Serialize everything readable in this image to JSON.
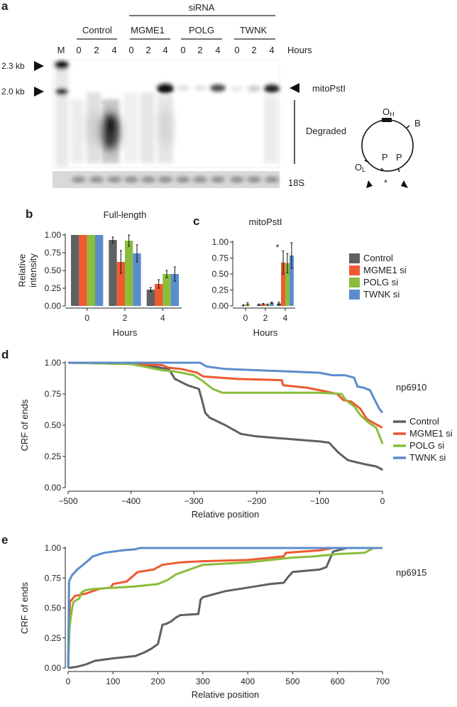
{
  "panel_a": {
    "panel_label": "a",
    "sirna_label": "siRNA",
    "groups": [
      "Control",
      "MGME1",
      "POLG",
      "TWNK"
    ],
    "marker_lane": "M",
    "lane_hours": [
      "0",
      "2",
      "4",
      "0",
      "2",
      "4",
      "0",
      "2",
      "4",
      "0",
      "2",
      "4"
    ],
    "hours_label": "Hours",
    "size_markers": [
      "2.3 kb",
      "2.0 kb"
    ],
    "band_label": "mitoPstI",
    "degraded_label": "Degraded",
    "loading_label": "18S",
    "plasmid": {
      "oh": "O",
      "oh_sub": "H",
      "ol": "O",
      "ol_sub": "L",
      "b": "B",
      "p1": "P",
      "p2": "P",
      "asterisk": "*"
    }
  },
  "chart_data": [
    {
      "id": "b",
      "panel_label": "b",
      "type": "bar",
      "title": "Full-length",
      "xlabel": "Hours",
      "ylabel": "Relative intensity",
      "ylabel_lines": [
        "Relative",
        "intensity"
      ],
      "categories": [
        "0",
        "2",
        "4"
      ],
      "ylim": [
        0,
        1
      ],
      "yticks": [
        "0.00",
        "0.25",
        "0.50",
        "0.75",
        "1.00"
      ],
      "series": [
        {
          "name": "Control",
          "values": [
            1.0,
            0.93,
            0.23
          ],
          "errors": [
            0.0,
            0.04,
            0.03
          ]
        },
        {
          "name": "MGME1 si",
          "values": [
            1.0,
            0.62,
            0.31
          ],
          "errors": [
            0.0,
            0.16,
            0.06
          ]
        },
        {
          "name": "POLG si",
          "values": [
            1.0,
            0.92,
            0.45
          ],
          "errors": [
            0.0,
            0.08,
            0.05
          ]
        },
        {
          "name": "TWNK si",
          "values": [
            1.0,
            0.74,
            0.45
          ],
          "errors": [
            0.0,
            0.12,
            0.1
          ]
        }
      ]
    },
    {
      "id": "c",
      "panel_label": "c",
      "type": "bar",
      "title": "mitoPstI",
      "xlabel": "Hours",
      "ylabel": "",
      "categories": [
        "0",
        "2",
        "4"
      ],
      "ylim": [
        0,
        1
      ],
      "yticks": [
        "0.00",
        "0.25",
        "0.50",
        "0.75",
        "1.00"
      ],
      "annotation": "*",
      "series": [
        {
          "name": "Control",
          "values": [
            0.0,
            0.02,
            0.04
          ],
          "errors": [
            0.0,
            0.01,
            0.02
          ]
        },
        {
          "name": "MGME1 si",
          "values": [
            0.01,
            0.03,
            0.68
          ],
          "errors": [
            0.01,
            0.01,
            0.18
          ]
        },
        {
          "name": "POLG si",
          "values": [
            0.03,
            0.02,
            0.67
          ],
          "errors": [
            0.02,
            0.01,
            0.15
          ]
        },
        {
          "name": "TWNK si",
          "values": [
            0.0,
            0.05,
            0.79
          ],
          "errors": [
            0.0,
            0.01,
            0.2
          ]
        }
      ]
    },
    {
      "id": "d",
      "panel_label": "d",
      "type": "line",
      "title": "",
      "sample": "np6910",
      "xlabel": "Relative position",
      "ylabel": "CRF of ends",
      "xlim": [
        -500,
        0
      ],
      "ylim": [
        0,
        1
      ],
      "xticks": [
        "-500",
        "-400",
        "-300",
        "-200",
        "-100",
        "0"
      ],
      "yticks": [
        "0.00",
        "0.25",
        "0.50",
        "0.75",
        "1.00"
      ],
      "series": [
        {
          "name": "Control",
          "points": [
            [
              -500,
              1.0
            ],
            [
              -420,
              1.0
            ],
            [
              -380,
              0.98
            ],
            [
              -340,
              0.95
            ],
            [
              -330,
              0.87
            ],
            [
              -310,
              0.82
            ],
            [
              -292,
              0.79
            ],
            [
              -287,
              0.7
            ],
            [
              -282,
              0.6
            ],
            [
              -275,
              0.56
            ],
            [
              -250,
              0.5
            ],
            [
              -225,
              0.43
            ],
            [
              -200,
              0.41
            ],
            [
              -150,
              0.39
            ],
            [
              -100,
              0.37
            ],
            [
              -85,
              0.36
            ],
            [
              -70,
              0.28
            ],
            [
              -55,
              0.22
            ],
            [
              -30,
              0.19
            ],
            [
              -10,
              0.17
            ],
            [
              -2,
              0.15
            ],
            [
              0,
              0.14
            ]
          ]
        },
        {
          "name": "MGME1 si",
          "points": [
            [
              -500,
              1.0
            ],
            [
              -400,
              0.99
            ],
            [
              -350,
              0.98
            ],
            [
              -340,
              0.96
            ],
            [
              -320,
              0.95
            ],
            [
              -295,
              0.92
            ],
            [
              -285,
              0.89
            ],
            [
              -230,
              0.87
            ],
            [
              -160,
              0.86
            ],
            [
              -158,
              0.82
            ],
            [
              -120,
              0.8
            ],
            [
              -90,
              0.77
            ],
            [
              -72,
              0.75
            ],
            [
              -62,
              0.7
            ],
            [
              -50,
              0.69
            ],
            [
              -35,
              0.63
            ],
            [
              -25,
              0.55
            ],
            [
              -15,
              0.52
            ],
            [
              0,
              0.48
            ]
          ]
        },
        {
          "name": "POLG si",
          "points": [
            [
              -500,
              1.0
            ],
            [
              -400,
              0.99
            ],
            [
              -350,
              0.94
            ],
            [
              -330,
              0.93
            ],
            [
              -300,
              0.9
            ],
            [
              -285,
              0.85
            ],
            [
              -270,
              0.79
            ],
            [
              -255,
              0.76
            ],
            [
              -200,
              0.76
            ],
            [
              -100,
              0.76
            ],
            [
              -65,
              0.75
            ],
            [
              -58,
              0.7
            ],
            [
              -45,
              0.65
            ],
            [
              -35,
              0.58
            ],
            [
              -22,
              0.52
            ],
            [
              -10,
              0.48
            ],
            [
              -2,
              0.38
            ],
            [
              0,
              0.35
            ]
          ]
        },
        {
          "name": "TWNK si",
          "points": [
            [
              -500,
              1.0
            ],
            [
              -400,
              1.0
            ],
            [
              -290,
              1.0
            ],
            [
              -280,
              0.97
            ],
            [
              -250,
              0.95
            ],
            [
              -150,
              0.93
            ],
            [
              -100,
              0.92
            ],
            [
              -80,
              0.9
            ],
            [
              -60,
              0.9
            ],
            [
              -45,
              0.88
            ],
            [
              -40,
              0.81
            ],
            [
              -30,
              0.8
            ],
            [
              -20,
              0.78
            ],
            [
              -10,
              0.68
            ],
            [
              -5,
              0.63
            ],
            [
              0,
              0.6
            ]
          ]
        }
      ]
    },
    {
      "id": "e",
      "panel_label": "e",
      "type": "line",
      "title": "",
      "sample": "np6915",
      "xlabel": "Relative position",
      "ylabel": "CRF of ends",
      "xlim": [
        0,
        700
      ],
      "ylim": [
        0,
        1
      ],
      "xticks": [
        "0",
        "100",
        "200",
        "300",
        "400",
        "500",
        "600",
        "700"
      ],
      "yticks": [
        "0.00",
        "0.25",
        "0.50",
        "0.75",
        "1.00"
      ],
      "series": [
        {
          "name": "Control",
          "points": [
            [
              0,
              0.0
            ],
            [
              20,
              0.01
            ],
            [
              40,
              0.03
            ],
            [
              60,
              0.06
            ],
            [
              100,
              0.08
            ],
            [
              150,
              0.1
            ],
            [
              170,
              0.13
            ],
            [
              185,
              0.16
            ],
            [
              200,
              0.2
            ],
            [
              210,
              0.36
            ],
            [
              220,
              0.37
            ],
            [
              230,
              0.39
            ],
            [
              240,
              0.42
            ],
            [
              250,
              0.44
            ],
            [
              290,
              0.45
            ],
            [
              295,
              0.57
            ],
            [
              300,
              0.59
            ],
            [
              350,
              0.64
            ],
            [
              400,
              0.67
            ],
            [
              450,
              0.7
            ],
            [
              480,
              0.71
            ],
            [
              490,
              0.76
            ],
            [
              500,
              0.8
            ],
            [
              560,
              0.82
            ],
            [
              575,
              0.84
            ],
            [
              590,
              0.97
            ],
            [
              620,
              1.0
            ],
            [
              700,
              1.0
            ]
          ]
        },
        {
          "name": "MGME1 si",
          "points": [
            [
              0,
              0.0
            ],
            [
              4,
              0.55
            ],
            [
              15,
              0.6
            ],
            [
              40,
              0.62
            ],
            [
              70,
              0.66
            ],
            [
              95,
              0.67
            ],
            [
              100,
              0.7
            ],
            [
              130,
              0.72
            ],
            [
              155,
              0.8
            ],
            [
              190,
              0.82
            ],
            [
              210,
              0.86
            ],
            [
              250,
              0.88
            ],
            [
              300,
              0.89
            ],
            [
              400,
              0.9
            ],
            [
              480,
              0.93
            ],
            [
              485,
              0.96
            ],
            [
              520,
              0.97
            ],
            [
              560,
              0.98
            ],
            [
              590,
              1.0
            ],
            [
              700,
              1.0
            ]
          ]
        },
        {
          "name": "POLG si",
          "points": [
            [
              0,
              0.0
            ],
            [
              3,
              0.33
            ],
            [
              8,
              0.48
            ],
            [
              12,
              0.55
            ],
            [
              25,
              0.58
            ],
            [
              30,
              0.63
            ],
            [
              40,
              0.65
            ],
            [
              60,
              0.66
            ],
            [
              110,
              0.67
            ],
            [
              150,
              0.68
            ],
            [
              200,
              0.7
            ],
            [
              220,
              0.73
            ],
            [
              240,
              0.78
            ],
            [
              270,
              0.82
            ],
            [
              300,
              0.86
            ],
            [
              400,
              0.88
            ],
            [
              450,
              0.9
            ],
            [
              500,
              0.92
            ],
            [
              550,
              0.93
            ],
            [
              600,
              0.95
            ],
            [
              660,
              0.96
            ],
            [
              680,
              1.0
            ],
            [
              700,
              1.0
            ]
          ]
        },
        {
          "name": "TWNK si",
          "points": [
            [
              0,
              0.0
            ],
            [
              2,
              0.72
            ],
            [
              8,
              0.77
            ],
            [
              20,
              0.82
            ],
            [
              40,
              0.88
            ],
            [
              55,
              0.93
            ],
            [
              80,
              0.96
            ],
            [
              120,
              0.98
            ],
            [
              150,
              0.99
            ],
            [
              160,
              1.0
            ],
            [
              700,
              1.0
            ]
          ]
        }
      ]
    }
  ],
  "legend_bars": [
    "Control",
    "MGME1 si",
    "POLG si",
    "TWNK si"
  ],
  "legend_lines": [
    "Control",
    "MGME1 si",
    "POLG si",
    "TWNK si"
  ],
  "colors": {
    "Control": "#5f6062",
    "MGME1 si": "#ef5a30",
    "POLG si": "#8abd3c",
    "TWNK si": "#5b8ccc"
  }
}
